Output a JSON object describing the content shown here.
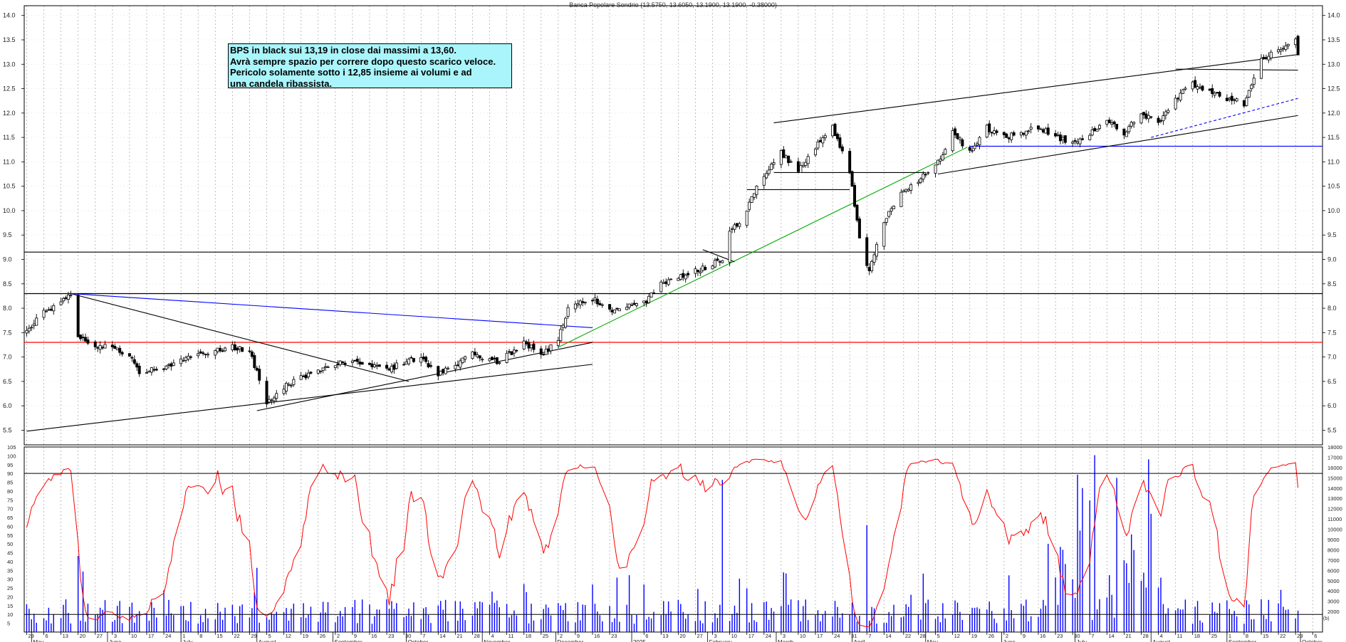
{
  "header": {
    "title": "Banca Popolare Sondrio (13.5750, 13.6050, 13.1900, 13.1900, -0.38000)"
  },
  "annotation": {
    "lines": [
      "BPS in black sui 13,19 in close dai massimi a 13,60.",
      "Avrà sempre spazio per correre dopo questo scarico veloce.",
      "Pericolo solamente sotto i 12,85 insieme ai volumi e ad",
      "una candela ribassista."
    ]
  },
  "small_label": "(b)",
  "colors": {
    "candle": "#000000",
    "oscillator": "#ff0000",
    "volume": "#0000ff",
    "support_red": "#ff0000",
    "trend_blue": "#0000ff",
    "trend_green": "#00aa00"
  },
  "chart_data": [
    {
      "type": "candlestick",
      "title": "Banca Popolare Sondrio (13.5750, 13.6050, 13.1900, 13.1900, -0.38000)",
      "ylim": [
        5.2,
        14.2
      ],
      "y_ticks": [
        "5.5",
        "6.0",
        "6.5",
        "7.0",
        "7.5",
        "8.0",
        "8.5",
        "9.0",
        "9.5",
        "10.0",
        "10.5",
        "11.0",
        "11.5",
        "12.0",
        "12.5",
        "13.0",
        "13.5",
        "14.0"
      ],
      "x_range": [
        "2024-04-28",
        "2025-10-10"
      ],
      "last_bar": {
        "open": 13.575,
        "high": 13.605,
        "low": 13.19,
        "close": 13.19,
        "change": -0.38
      },
      "close_path": [
        [
          "2024-04-29",
          7.55
        ],
        [
          "2024-05-06",
          7.95
        ],
        [
          "2024-05-13",
          8.1
        ],
        [
          "2024-05-17",
          8.3
        ],
        [
          "2024-05-20",
          7.4
        ],
        [
          "2024-05-27",
          7.25
        ],
        [
          "2024-06-03",
          7.2
        ],
        [
          "2024-06-10",
          7.05
        ],
        [
          "2024-06-14",
          6.7
        ],
        [
          "2024-06-24",
          6.8
        ],
        [
          "2024-07-08",
          7.05
        ],
        [
          "2024-07-22",
          7.2
        ],
        [
          "2024-07-29",
          7.15
        ],
        [
          "2024-08-05",
          6.05
        ],
        [
          "2024-08-12",
          6.4
        ],
        [
          "2024-08-26",
          6.75
        ],
        [
          "2024-09-09",
          6.95
        ],
        [
          "2024-09-23",
          6.75
        ],
        [
          "2024-10-07",
          7.0
        ],
        [
          "2024-10-14",
          6.65
        ],
        [
          "2024-10-28",
          7.05
        ],
        [
          "2024-11-08",
          6.9
        ],
        [
          "2024-11-18",
          7.3
        ],
        [
          "2024-11-26",
          7.05
        ],
        [
          "2024-12-02",
          7.35
        ],
        [
          "2024-12-06",
          8.0
        ],
        [
          "2024-12-16",
          8.2
        ],
        [
          "2024-12-23",
          7.95
        ],
        [
          "2025-01-06",
          8.1
        ],
        [
          "2025-01-13",
          8.5
        ],
        [
          "2025-01-27",
          8.75
        ],
        [
          "2025-02-07",
          9.0
        ],
        [
          "2025-02-10",
          9.6
        ],
        [
          "2025-02-14",
          9.7
        ],
        [
          "2025-02-21",
          10.5
        ],
        [
          "2025-03-03",
          11.2
        ],
        [
          "2025-03-10",
          10.8
        ],
        [
          "2025-03-17",
          11.3
        ],
        [
          "2025-03-24",
          11.7
        ],
        [
          "2025-03-31",
          10.8
        ],
        [
          "2025-04-04",
          9.4
        ],
        [
          "2025-04-08",
          8.75
        ],
        [
          "2025-04-14",
          9.8
        ],
        [
          "2025-04-22",
          10.4
        ],
        [
          "2025-05-05",
          10.9
        ],
        [
          "2025-05-12",
          11.6
        ],
        [
          "2025-05-19",
          11.2
        ],
        [
          "2025-05-26",
          11.7
        ],
        [
          "2025-06-02",
          11.5
        ],
        [
          "2025-06-16",
          11.7
        ],
        [
          "2025-06-30",
          11.35
        ],
        [
          "2025-07-07",
          11.6
        ],
        [
          "2025-07-14",
          11.9
        ],
        [
          "2025-07-21",
          11.6
        ],
        [
          "2025-07-28",
          12.0
        ],
        [
          "2025-08-04",
          11.8
        ],
        [
          "2025-08-11",
          12.3
        ],
        [
          "2025-08-18",
          12.6
        ],
        [
          "2025-09-01",
          12.3
        ],
        [
          "2025-09-08",
          12.2
        ],
        [
          "2025-09-15",
          13.1
        ],
        [
          "2025-09-22",
          13.3
        ],
        [
          "2025-09-29",
          13.57
        ],
        [
          "2025-09-30",
          13.19
        ]
      ],
      "horizontal_levels": [
        {
          "value": 9.15,
          "color": "#000000"
        },
        {
          "value": 8.3,
          "color": "#000000"
        },
        {
          "value": 7.3,
          "color": "#ff0000"
        },
        {
          "value": 11.32,
          "color": "#0000ff",
          "from": "2025-05-19"
        }
      ],
      "trendlines": [
        {
          "from": [
            "2024-04-29",
            5.48
          ],
          "to": [
            "2024-12-16",
            6.85
          ],
          "color": "#000000"
        },
        {
          "from": [
            "2024-05-17",
            8.3
          ],
          "to": [
            "2024-10-02",
            6.5
          ],
          "color": "#000000"
        },
        {
          "from": [
            "2024-08-01",
            5.9
          ],
          "to": [
            "2024-12-16",
            7.3
          ],
          "color": "#000000"
        },
        {
          "from": [
            "2024-05-17",
            8.3
          ],
          "to": [
            "2024-12-16",
            7.6
          ],
          "color": "#0000ff"
        },
        {
          "from": [
            "2024-12-02",
            7.2
          ],
          "to": [
            "2025-05-18",
            11.3
          ],
          "color": "#00aa00"
        },
        {
          "from": [
            "2025-02-28",
            11.8
          ],
          "to": [
            "2025-09-30",
            13.2
          ],
          "color": "#000000"
        },
        {
          "from": [
            "2025-05-06",
            10.75
          ],
          "to": [
            "2025-09-30",
            11.95
          ],
          "color": "#000000"
        },
        {
          "from": [
            "2025-08-01",
            11.5
          ],
          "to": [
            "2025-09-30",
            12.3
          ],
          "color": "#0000ff",
          "dashed": true
        },
        {
          "from": [
            "2025-02-28",
            10.78
          ],
          "to": [
            "2025-05-01",
            10.78
          ],
          "color": "#000000"
        },
        {
          "from": [
            "2025-02-17",
            10.43
          ],
          "to": [
            "2025-03-31",
            10.43
          ],
          "color": "#000000"
        },
        {
          "from": [
            "2025-08-11",
            12.9
          ],
          "to": [
            "2025-09-30",
            12.88
          ],
          "color": "#000000"
        },
        {
          "from": [
            "2025-01-30",
            9.2
          ],
          "to": [
            "2025-02-12",
            8.95
          ],
          "color": "#000000"
        }
      ]
    },
    {
      "type": "line",
      "series": [
        {
          "values_note": "stochastic oscillator",
          "color": "#ff0000"
        }
      ],
      "ylim": [
        0,
        105
      ],
      "y_ticks": [
        "5",
        "10",
        "15",
        "20",
        "25",
        "30",
        "35",
        "40",
        "45",
        "50",
        "55",
        "60",
        "65",
        "70",
        "75",
        "80",
        "85",
        "90",
        "95",
        "100",
        "105"
      ],
      "levels": [
        90,
        10
      ]
    },
    {
      "type": "bar",
      "series": [
        {
          "color": "#0000ff"
        }
      ],
      "ylim": [
        0,
        18000
      ],
      "y_ticks": [
        "2000",
        "3000",
        "4000",
        "5000",
        "6000",
        "7000",
        "8000",
        "9000",
        "10000",
        "11000",
        "12000",
        "13000",
        "14000",
        "15000",
        "16000",
        "17000",
        "18000"
      ]
    }
  ],
  "x_axis": {
    "day_ticks": [
      [
        "2024-04-29",
        "29"
      ],
      [
        "2024-05-06",
        "6"
      ],
      [
        "2024-05-13",
        "13"
      ],
      [
        "2024-05-20",
        "20"
      ],
      [
        "2024-05-27",
        "27"
      ],
      [
        "2024-06-03",
        "3"
      ],
      [
        "2024-06-10",
        "10"
      ],
      [
        "2024-06-17",
        "17"
      ],
      [
        "2024-06-24",
        "24"
      ],
      [
        "2024-07-01",
        "1"
      ],
      [
        "2024-07-08",
        "8"
      ],
      [
        "2024-07-15",
        "15"
      ],
      [
        "2024-07-22",
        "22"
      ],
      [
        "2024-07-29",
        "29"
      ],
      [
        "2024-08-05",
        "5"
      ],
      [
        "2024-08-12",
        "12"
      ],
      [
        "2024-08-19",
        "19"
      ],
      [
        "2024-08-26",
        "26"
      ],
      [
        "2024-09-02",
        "2"
      ],
      [
        "2024-09-09",
        "9"
      ],
      [
        "2024-09-16",
        "16"
      ],
      [
        "2024-09-23",
        "23"
      ],
      [
        "2024-09-30",
        "30"
      ],
      [
        "2024-10-07",
        "7"
      ],
      [
        "2024-10-14",
        "14"
      ],
      [
        "2024-10-21",
        "21"
      ],
      [
        "2024-10-28",
        "28"
      ],
      [
        "2024-11-04",
        "4"
      ],
      [
        "2024-11-11",
        "11"
      ],
      [
        "2024-11-18",
        "18"
      ],
      [
        "2024-11-25",
        "25"
      ],
      [
        "2024-12-02",
        "2"
      ],
      [
        "2024-12-09",
        "9"
      ],
      [
        "2024-12-16",
        "16"
      ],
      [
        "2024-12-23",
        "23"
      ],
      [
        "2025-01-06",
        "6"
      ],
      [
        "2025-01-13",
        "13"
      ],
      [
        "2025-01-20",
        "20"
      ],
      [
        "2025-01-27",
        "27"
      ],
      [
        "2025-02-03",
        "3"
      ],
      [
        "2025-02-10",
        "10"
      ],
      [
        "2025-02-17",
        "17"
      ],
      [
        "2025-02-24",
        "24"
      ],
      [
        "2025-03-03",
        "3"
      ],
      [
        "2025-03-10",
        "10"
      ],
      [
        "2025-03-17",
        "17"
      ],
      [
        "2025-03-24",
        "24"
      ],
      [
        "2025-03-31",
        "31"
      ],
      [
        "2025-04-07",
        "7"
      ],
      [
        "2025-04-14",
        "14"
      ],
      [
        "2025-04-22",
        "22"
      ],
      [
        "2025-04-28",
        "28"
      ],
      [
        "2025-05-05",
        "5"
      ],
      [
        "2025-05-12",
        "12"
      ],
      [
        "2025-05-19",
        "19"
      ],
      [
        "2025-05-26",
        "26"
      ],
      [
        "2025-06-02",
        "2"
      ],
      [
        "2025-06-09",
        "9"
      ],
      [
        "2025-06-16",
        "16"
      ],
      [
        "2025-06-23",
        "23"
      ],
      [
        "2025-06-30",
        "30"
      ],
      [
        "2025-07-07",
        "7"
      ],
      [
        "2025-07-14",
        "14"
      ],
      [
        "2025-07-21",
        "21"
      ],
      [
        "2025-07-28",
        "28"
      ],
      [
        "2025-08-04",
        "4"
      ],
      [
        "2025-08-11",
        "11"
      ],
      [
        "2025-08-18",
        "18"
      ],
      [
        "2025-08-25",
        "25"
      ],
      [
        "2025-09-01",
        "1"
      ],
      [
        "2025-09-08",
        "8"
      ],
      [
        "2025-09-15",
        "15"
      ],
      [
        "2025-09-22",
        "22"
      ],
      [
        "2025-09-29",
        "29"
      ],
      [
        "2025-10-06",
        "6"
      ]
    ],
    "month_ticks": [
      [
        "2024-05-01",
        "May"
      ],
      [
        "2024-06-01",
        "June"
      ],
      [
        "2024-07-01",
        "July"
      ],
      [
        "2024-08-01",
        "August"
      ],
      [
        "2024-09-01",
        "September"
      ],
      [
        "2024-10-01",
        "October"
      ],
      [
        "2024-11-01",
        "November"
      ],
      [
        "2024-12-01",
        "December"
      ],
      [
        "2025-01-01",
        "2025"
      ],
      [
        "2025-02-01",
        "February"
      ],
      [
        "2025-03-01",
        "March"
      ],
      [
        "2025-04-01",
        "April"
      ],
      [
        "2025-05-01",
        "May"
      ],
      [
        "2025-06-01",
        "June"
      ],
      [
        "2025-07-01",
        "July"
      ],
      [
        "2025-08-01",
        "August"
      ],
      [
        "2025-09-01",
        "September"
      ],
      [
        "2025-10-01",
        "October"
      ]
    ]
  }
}
